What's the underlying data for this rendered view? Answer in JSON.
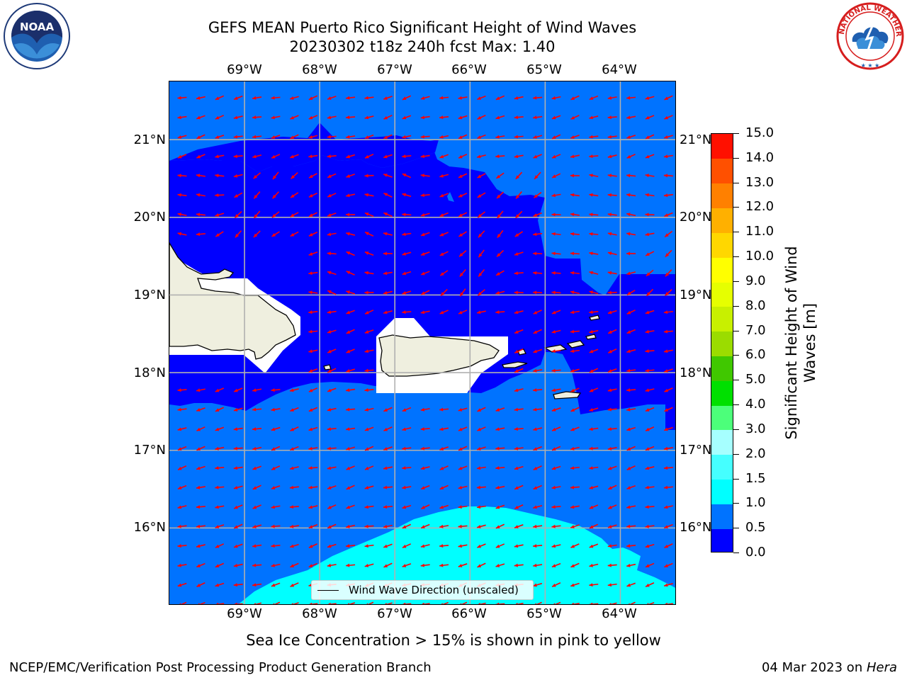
{
  "title_line1": "GEFS MEAN Puerto Rico Significant Height of Wind Waves",
  "title_line2": "20230302 t18z 240h fcst   Max: 1.40",
  "lon_labels": [
    "69°W",
    "68°W",
    "67°W",
    "66°W",
    "65°W",
    "64°W"
  ],
  "lat_labels": [
    "21°N",
    "20°N",
    "19°N",
    "18°N",
    "17°N",
    "16°N"
  ],
  "map": {
    "lon_range": [
      -70.0,
      -63.25
    ],
    "lat_range": [
      15.0,
      21.75
    ],
    "grid": true,
    "land_color": "#efefdf",
    "arrow_color": "#ff0000",
    "legend_line_color": "#000000",
    "masked_color": "#ffffff"
  },
  "legend": {
    "label": "Wind Wave Direction (unscaled)"
  },
  "colorbar": {
    "label": "Significant Height of Wind Waves [m]",
    "tick_labels": [
      "0.0",
      "0.5",
      "1.0",
      "1.5",
      "2.0",
      "3.0",
      "4.0",
      "5.0",
      "6.0",
      "7.0",
      "8.0",
      "9.0",
      "10.0",
      "11.0",
      "12.0",
      "13.0",
      "14.0",
      "15.0"
    ],
    "colors": [
      "#0000ff",
      "#0073ff",
      "#00ffff",
      "#45ffff",
      "#a6ffff",
      "#4cff7a",
      "#00e000",
      "#40c800",
      "#9bdc00",
      "#c8f000",
      "#e6ff00",
      "#ffff00",
      "#ffd700",
      "#ffb000",
      "#ff8000",
      "#ff5000",
      "#ff1000"
    ]
  },
  "ice_note": "Sea Ice Concentration > 15% is shown in pink to yellow",
  "footer_left": "NCEP/EMC/Verification Post Processing Product Generation Branch",
  "footer_right_prefix": "04 Mar 2023 on ",
  "footer_right_host": "Hera",
  "logos": {
    "left": "noaa-logo",
    "right": "national-weather-service-logo"
  }
}
